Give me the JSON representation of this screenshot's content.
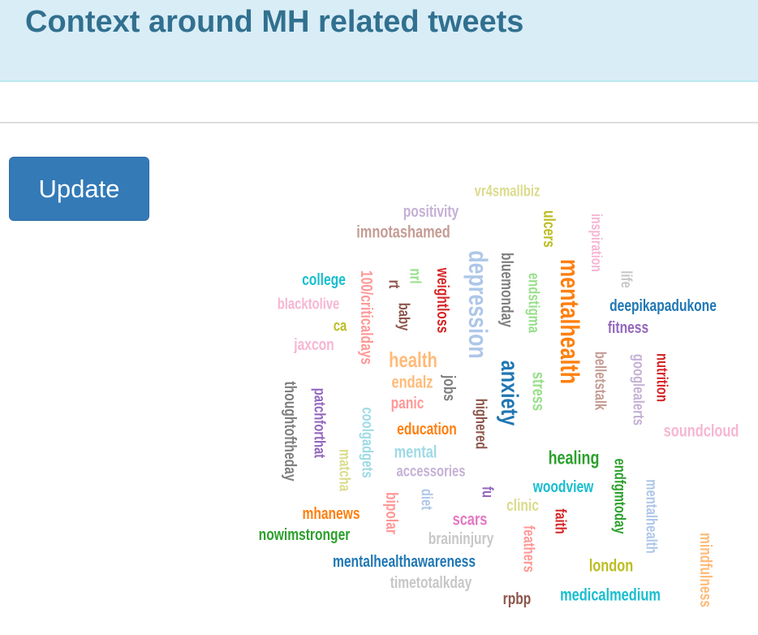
{
  "header": {
    "title": "Context around MH related tweets"
  },
  "controls": {
    "update_label": "Update"
  },
  "wordcloud": {
    "words": [
      {
        "text": "vr4smallbiz",
        "color": "#dbdb8d"
      },
      {
        "text": "positivity",
        "color": "#c5b0d5"
      },
      {
        "text": "imnotashamed",
        "color": "#c49c94"
      },
      {
        "text": "ulcers",
        "color": "#bcbd22"
      },
      {
        "text": "inspiration",
        "color": "#f7b6d2"
      },
      {
        "text": "mentalhealth",
        "color": "#ff7f0e"
      },
      {
        "text": "depression",
        "color": "#aec7e8"
      },
      {
        "text": "bluemonday",
        "color": "#7f7f7f"
      },
      {
        "text": "endstigma",
        "color": "#98df8a"
      },
      {
        "text": "life",
        "color": "#c7c7c7"
      },
      {
        "text": "100/criticaldays",
        "color": "#ff9896"
      },
      {
        "text": "nrl",
        "color": "#98df8a"
      },
      {
        "text": "rt",
        "color": "#8c564b"
      },
      {
        "text": "weightloss",
        "color": "#d62728"
      },
      {
        "text": "college",
        "color": "#17becf"
      },
      {
        "text": "deepikapadukone",
        "color": "#1f77b4"
      },
      {
        "text": "blacktolive",
        "color": "#f7b6d2"
      },
      {
        "text": "baby",
        "color": "#8c564b"
      },
      {
        "text": "fitness",
        "color": "#9467bd"
      },
      {
        "text": "ca",
        "color": "#bcbd22"
      },
      {
        "text": "belletstalk",
        "color": "#c49c94"
      },
      {
        "text": "googlealerts",
        "color": "#c5b0d5"
      },
      {
        "text": "nutrition",
        "color": "#d62728"
      },
      {
        "text": "jaxcon",
        "color": "#f7b6d2"
      },
      {
        "text": "anxiety",
        "color": "#1f77b4"
      },
      {
        "text": "health",
        "color": "#ffbb78"
      },
      {
        "text": "stress",
        "color": "#98df8a"
      },
      {
        "text": "endalz",
        "color": "#ffbb78"
      },
      {
        "text": "jobs",
        "color": "#7f7f7f"
      },
      {
        "text": "thoughtoftheday",
        "color": "#7f7f7f"
      },
      {
        "text": "patchforthat",
        "color": "#9467bd"
      },
      {
        "text": "panic",
        "color": "#ff9896"
      },
      {
        "text": "coolgadgets",
        "color": "#9edae5"
      },
      {
        "text": "highered",
        "color": "#8c564b"
      },
      {
        "text": "soundcloud",
        "color": "#f7b6d2"
      },
      {
        "text": "education",
        "color": "#ff7f0e"
      },
      {
        "text": "mental",
        "color": "#9edae5"
      },
      {
        "text": "healing",
        "color": "#2ca02c"
      },
      {
        "text": "matcha",
        "color": "#dbdb8d"
      },
      {
        "text": "accessories",
        "color": "#c5b0d5"
      },
      {
        "text": "endfgmtoday",
        "color": "#2ca02c"
      },
      {
        "text": "woodview",
        "color": "#17becf"
      },
      {
        "text": "mentalhealth",
        "color": "#aec7e8"
      },
      {
        "text": "diet",
        "color": "#aec7e8"
      },
      {
        "text": "fu",
        "color": "#9467bd"
      },
      {
        "text": "clinic",
        "color": "#dbdb8d"
      },
      {
        "text": "mhanews",
        "color": "#ff7f0e"
      },
      {
        "text": "bipolar",
        "color": "#ff9896"
      },
      {
        "text": "scars",
        "color": "#e377c2"
      },
      {
        "text": "faith",
        "color": "#d62728"
      },
      {
        "text": "nowimstronger",
        "color": "#2ca02c"
      },
      {
        "text": "braininjury",
        "color": "#c7c7c7"
      },
      {
        "text": "feathers",
        "color": "#ff9896"
      },
      {
        "text": "mindfulness",
        "color": "#ffbb78"
      },
      {
        "text": "mentalhealthawareness",
        "color": "#1f77b4"
      },
      {
        "text": "london",
        "color": "#bcbd22"
      },
      {
        "text": "timetotalkday",
        "color": "#c7c7c7"
      },
      {
        "text": "rpbp",
        "color": "#8c564b"
      },
      {
        "text": "medicalmedium",
        "color": "#17becf"
      }
    ]
  }
}
